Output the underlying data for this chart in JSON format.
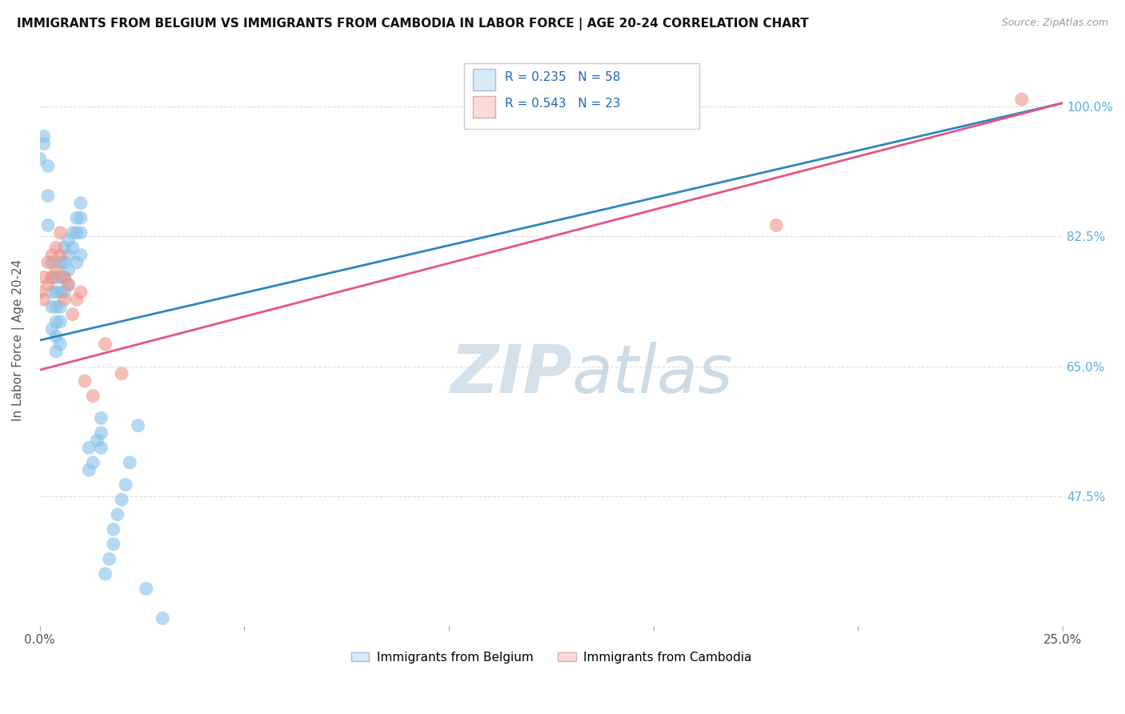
{
  "title": "IMMIGRANTS FROM BELGIUM VS IMMIGRANTS FROM CAMBODIA IN LABOR FORCE | AGE 20-24 CORRELATION CHART",
  "source": "Source: ZipAtlas.com",
  "ylabel": "In Labor Force | Age 20-24",
  "xmin": 0.0,
  "xmax": 0.25,
  "ymin": 0.3,
  "ymax": 1.07,
  "x_ticks": [
    0.0,
    0.05,
    0.1,
    0.15,
    0.2,
    0.25
  ],
  "x_tick_labels": [
    "0.0%",
    "",
    "",
    "",
    "",
    "25.0%"
  ],
  "y_ticks": [
    0.475,
    0.65,
    0.825,
    1.0
  ],
  "y_tick_labels": [
    "47.5%",
    "65.0%",
    "82.5%",
    "100.0%"
  ],
  "belgium_R": 0.235,
  "belgium_N": 58,
  "cambodia_R": 0.543,
  "cambodia_N": 23,
  "belgium_color": "#85C1E9",
  "cambodia_color": "#F1948A",
  "belgium_line_color": "#2E86C1",
  "cambodia_line_color": "#E75480",
  "legend_box_color": "#D6EAF8",
  "legend_box_color2": "#FADBD8",
  "belgium_line_x0": 0.0,
  "belgium_line_y0": 0.685,
  "belgium_line_x1": 0.25,
  "belgium_line_y1": 1.005,
  "cambodia_line_x0": 0.0,
  "cambodia_line_y0": 0.645,
  "cambodia_line_x1": 0.25,
  "cambodia_line_y1": 1.005,
  "belgium_points_x": [
    0.0,
    0.001,
    0.001,
    0.002,
    0.002,
    0.002,
    0.003,
    0.003,
    0.003,
    0.003,
    0.003,
    0.004,
    0.004,
    0.004,
    0.004,
    0.004,
    0.004,
    0.005,
    0.005,
    0.005,
    0.005,
    0.005,
    0.005,
    0.006,
    0.006,
    0.006,
    0.006,
    0.007,
    0.007,
    0.007,
    0.007,
    0.008,
    0.008,
    0.009,
    0.009,
    0.009,
    0.01,
    0.01,
    0.01,
    0.01,
    0.012,
    0.012,
    0.013,
    0.014,
    0.015,
    0.015,
    0.015,
    0.016,
    0.017,
    0.018,
    0.018,
    0.019,
    0.02,
    0.021,
    0.022,
    0.024,
    0.026,
    0.03
  ],
  "belgium_points_y": [
    0.93,
    0.95,
    0.96,
    0.88,
    0.92,
    0.84,
    0.79,
    0.77,
    0.75,
    0.73,
    0.7,
    0.77,
    0.75,
    0.73,
    0.71,
    0.69,
    0.67,
    0.79,
    0.77,
    0.75,
    0.73,
    0.71,
    0.68,
    0.81,
    0.79,
    0.77,
    0.75,
    0.82,
    0.8,
    0.78,
    0.76,
    0.83,
    0.81,
    0.85,
    0.83,
    0.79,
    0.87,
    0.85,
    0.83,
    0.8,
    0.51,
    0.54,
    0.52,
    0.55,
    0.56,
    0.58,
    0.54,
    0.37,
    0.39,
    0.41,
    0.43,
    0.45,
    0.47,
    0.49,
    0.52,
    0.57,
    0.35,
    0.31
  ],
  "cambodia_points_x": [
    0.0,
    0.001,
    0.001,
    0.002,
    0.002,
    0.003,
    0.003,
    0.004,
    0.004,
    0.005,
    0.005,
    0.006,
    0.006,
    0.007,
    0.008,
    0.009,
    0.01,
    0.011,
    0.013,
    0.016,
    0.02,
    0.18,
    0.24
  ],
  "cambodia_points_y": [
    0.75,
    0.77,
    0.74,
    0.79,
    0.76,
    0.8,
    0.77,
    0.81,
    0.78,
    0.83,
    0.8,
    0.77,
    0.74,
    0.76,
    0.72,
    0.74,
    0.75,
    0.63,
    0.61,
    0.68,
    0.64,
    0.84,
    1.01
  ],
  "watermark_left": "ZIP",
  "watermark_right": "atlas",
  "grid_color": "#DDDDDD",
  "background_color": "#FFFFFF"
}
